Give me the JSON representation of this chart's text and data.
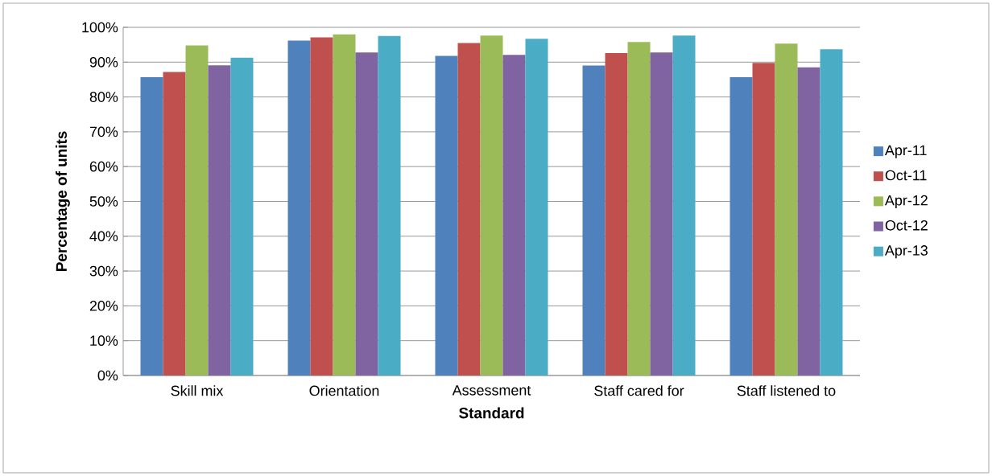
{
  "chart_data": {
    "type": "bar",
    "xlabel": "Standard",
    "ylabel": "Percentage of units",
    "categories": [
      "Skill mix",
      "Orientation",
      "Assessment",
      "Staff cared for",
      "Staff listened to"
    ],
    "series": [
      {
        "name": "Apr-11",
        "color": "#4f81bd",
        "values": [
          85.7,
          96.2,
          91.8,
          89.0,
          85.7
        ]
      },
      {
        "name": "Oct-11",
        "color": "#c0504d",
        "values": [
          87.2,
          97.1,
          95.5,
          92.6,
          89.8
        ]
      },
      {
        "name": "Apr-12",
        "color": "#9bbb59",
        "values": [
          94.8,
          98.0,
          97.6,
          95.8,
          95.3
        ]
      },
      {
        "name": "Oct-12",
        "color": "#8064a2",
        "values": [
          89.1,
          92.8,
          92.1,
          92.8,
          88.5
        ]
      },
      {
        "name": "Apr-13",
        "color": "#4bacc6",
        "values": [
          91.3,
          97.5,
          96.7,
          97.6,
          93.7
        ]
      }
    ],
    "ylim": [
      0,
      100
    ],
    "yticks": [
      {
        "value": 0,
        "label": "0%"
      },
      {
        "value": 10,
        "label": "10%"
      },
      {
        "value": 20,
        "label": "20%"
      },
      {
        "value": 30,
        "label": "30%"
      },
      {
        "value": 40,
        "label": "40%"
      },
      {
        "value": 50,
        "label": "50%"
      },
      {
        "value": 60,
        "label": "60%"
      },
      {
        "value": 70,
        "label": "70%"
      },
      {
        "value": 80,
        "label": "80%"
      },
      {
        "value": 90,
        "label": "90%"
      },
      {
        "value": 100,
        "label": "100%"
      }
    ],
    "grid": "y",
    "legend": "right"
  }
}
